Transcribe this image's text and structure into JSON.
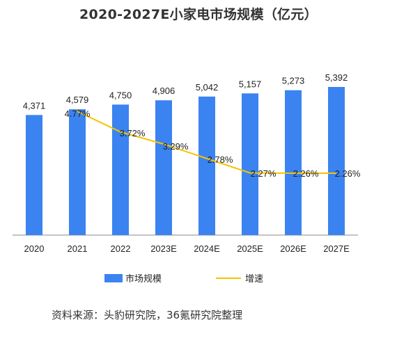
{
  "chart_data": {
    "type": "bar",
    "title": "2020-2027E小家电市场规模（亿元）",
    "categories": [
      "2020",
      "2021",
      "2022",
      "2023E",
      "2024E",
      "2025E",
      "2026E",
      "2027E"
    ],
    "series": [
      {
        "name": "市场规模",
        "type": "bar",
        "values": [
          4371,
          4579,
          4750,
          4906,
          5042,
          5157,
          5273,
          5392
        ],
        "labels": [
          "4,371",
          "4,579",
          "4,750",
          "4,906",
          "5,042",
          "5,157",
          "5,273",
          "5,392"
        ]
      },
      {
        "name": "增速",
        "type": "line",
        "values": [
          null,
          4.77,
          3.72,
          3.29,
          2.78,
          2.27,
          2.26,
          2.26
        ],
        "labels": [
          "",
          "4.77%",
          "3.72%",
          "3.29%",
          "2.78%",
          "2.27%",
          "2.26%",
          "2.26%"
        ]
      }
    ],
    "colors": {
      "bar": "#3b83f0",
      "line": "#f5c400",
      "axis": "#888888"
    },
    "legend_position": "bottom",
    "grid": false
  },
  "source": "资料来源：头豹研究院，36氪研究院整理"
}
